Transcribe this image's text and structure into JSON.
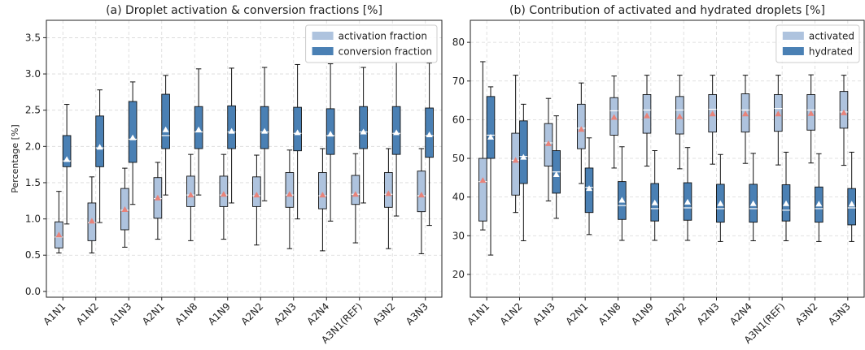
{
  "chart_data": [
    {
      "type": "box",
      "title": "(a) Droplet activation & conversion fractions [%]",
      "ylabel": "Percentage [%]",
      "categories": [
        "A1N1",
        "A1N2",
        "A1N3",
        "A2N1",
        "A1N8",
        "A1N9",
        "A2N2",
        "A2N3",
        "A2N4",
        "A3N1(REF)",
        "A3N2",
        "A3N3"
      ],
      "ylim": [
        -0.08,
        3.74
      ],
      "yticks": [
        {
          "value": 0,
          "label": "0.0"
        },
        0.5,
        {
          "value": 1,
          "label": "1.0"
        },
        1.5,
        {
          "value": 2,
          "label": "2.0"
        },
        2.5,
        {
          "value": 3,
          "label": "3.0"
        },
        3.5
      ],
      "grid": true,
      "legend": "upper right",
      "series": [
        {
          "name": "activation fraction",
          "color": "#aec3de",
          "mean_color": "#e8837a",
          "whislo": [
            0.53,
            0.53,
            0.61,
            0.72,
            0.7,
            0.72,
            0.64,
            0.59,
            0.56,
            0.67,
            0.59,
            0.52
          ],
          "q1": [
            0.6,
            0.7,
            0.85,
            1.01,
            1.17,
            1.17,
            1.17,
            1.16,
            1.14,
            1.2,
            1.16,
            1.1
          ],
          "med": [
            0.75,
            0.95,
            1.12,
            1.28,
            1.33,
            1.33,
            1.32,
            1.33,
            1.32,
            1.34,
            1.34,
            1.32
          ],
          "q3": [
            0.96,
            1.22,
            1.42,
            1.57,
            1.59,
            1.59,
            1.58,
            1.64,
            1.64,
            1.6,
            1.64,
            1.66
          ],
          "whishi": [
            1.38,
            1.58,
            1.7,
            1.78,
            1.89,
            1.89,
            1.88,
            1.95,
            1.97,
            1.9,
            1.97,
            1.97
          ],
          "mean": [
            0.78,
            0.97,
            1.13,
            1.29,
            1.33,
            1.34,
            1.33,
            1.34,
            1.33,
            1.34,
            1.35,
            1.33
          ]
        },
        {
          "name": "conversion fraction",
          "color": "#4a80b4",
          "mean_color": "#ffffff",
          "whislo": [
            0.93,
            0.95,
            1.2,
            1.33,
            1.33,
            1.22,
            1.25,
            1.0,
            0.97,
            1.22,
            1.04,
            0.91
          ],
          "q1": [
            1.72,
            1.72,
            1.78,
            1.97,
            1.97,
            1.97,
            1.97,
            1.94,
            1.89,
            1.97,
            1.89,
            1.85
          ],
          "med": [
            1.8,
            1.98,
            2.1,
            2.15,
            2.2,
            2.2,
            2.2,
            2.18,
            2.15,
            2.2,
            2.18,
            2.15
          ],
          "q3": [
            2.15,
            2.42,
            2.62,
            2.72,
            2.55,
            2.56,
            2.55,
            2.54,
            2.52,
            2.55,
            2.55,
            2.53
          ],
          "whishi": [
            2.58,
            2.78,
            2.89,
            2.98,
            3.07,
            3.08,
            3.09,
            3.13,
            3.14,
            3.09,
            3.16,
            3.15
          ],
          "mean": [
            1.82,
            1.99,
            2.12,
            2.23,
            2.23,
            2.21,
            2.21,
            2.19,
            2.17,
            2.2,
            2.19,
            2.16
          ]
        }
      ]
    },
    {
      "type": "box",
      "title": "(b) Contribution of activated and hydrated droplets [%]",
      "categories": [
        "A1N1",
        "A1N2",
        "A1N3",
        "A2N1",
        "A1N8",
        "A1N9",
        "A2N2",
        "A2N3",
        "A2N4",
        "A3N1(REF)",
        "A3N2",
        "A3N3"
      ],
      "ylim": [
        14.1,
        85.7
      ],
      "yticks": [
        20,
        30,
        40,
        50,
        60,
        70,
        80
      ],
      "grid": true,
      "legend": "upper right",
      "series": [
        {
          "name": "activated",
          "color": "#aec3de",
          "mean_color": "#e8837a",
          "whislo": [
            31.5,
            36,
            39,
            43.5,
            47.5,
            48,
            47.3,
            48.5,
            48.7,
            48.3,
            48.8,
            48.2
          ],
          "q1": [
            33.8,
            40.5,
            48,
            52.5,
            56,
            56.5,
            56.3,
            56.8,
            56.8,
            57,
            57.3,
            57.8
          ],
          "med": [
            44,
            49.5,
            54,
            57.8,
            62.3,
            62.5,
            62.5,
            62.7,
            62.5,
            62.9,
            62.5,
            62
          ],
          "q3": [
            50,
            56.5,
            59,
            64,
            65.7,
            66.5,
            66,
            66.5,
            66.7,
            66.5,
            66.5,
            67.3
          ],
          "whishi": [
            75,
            71.5,
            65.5,
            69.5,
            71.3,
            71.5,
            71.5,
            71.5,
            71.5,
            71.5,
            71.6,
            71.5
          ],
          "mean": [
            44.3,
            49.5,
            53.8,
            57.5,
            60.6,
            61,
            60.8,
            61.5,
            61.5,
            61.5,
            61.6,
            61.8
          ]
        },
        {
          "name": "hydrated",
          "color": "#4a80b4",
          "mean_color": "#ffffff",
          "whislo": [
            25,
            28.7,
            34.5,
            30.3,
            28.8,
            28.8,
            28.8,
            28.5,
            28.7,
            28.7,
            28.5,
            28.5
          ],
          "q1": [
            50,
            43.5,
            41,
            36,
            34.2,
            33.8,
            34,
            33.5,
            33.5,
            33.8,
            33.5,
            32.8
          ],
          "med": [
            56,
            50.5,
            46.5,
            42.5,
            37.8,
            37,
            37.2,
            37,
            37,
            36.6,
            37,
            37.2
          ],
          "q3": [
            66,
            59.7,
            52,
            47.5,
            44,
            43.5,
            43.7,
            43.3,
            43.3,
            43.2,
            42.6,
            42.2
          ],
          "whishi": [
            68.5,
            64,
            61,
            55.3,
            53,
            52,
            52.8,
            51,
            51.3,
            51.6,
            51.2,
            51.6
          ],
          "mean": [
            55.5,
            50.3,
            45.8,
            42.2,
            39.2,
            38.5,
            38.7,
            38.3,
            38.3,
            38.3,
            38.2,
            38.2
          ]
        }
      ]
    }
  ]
}
